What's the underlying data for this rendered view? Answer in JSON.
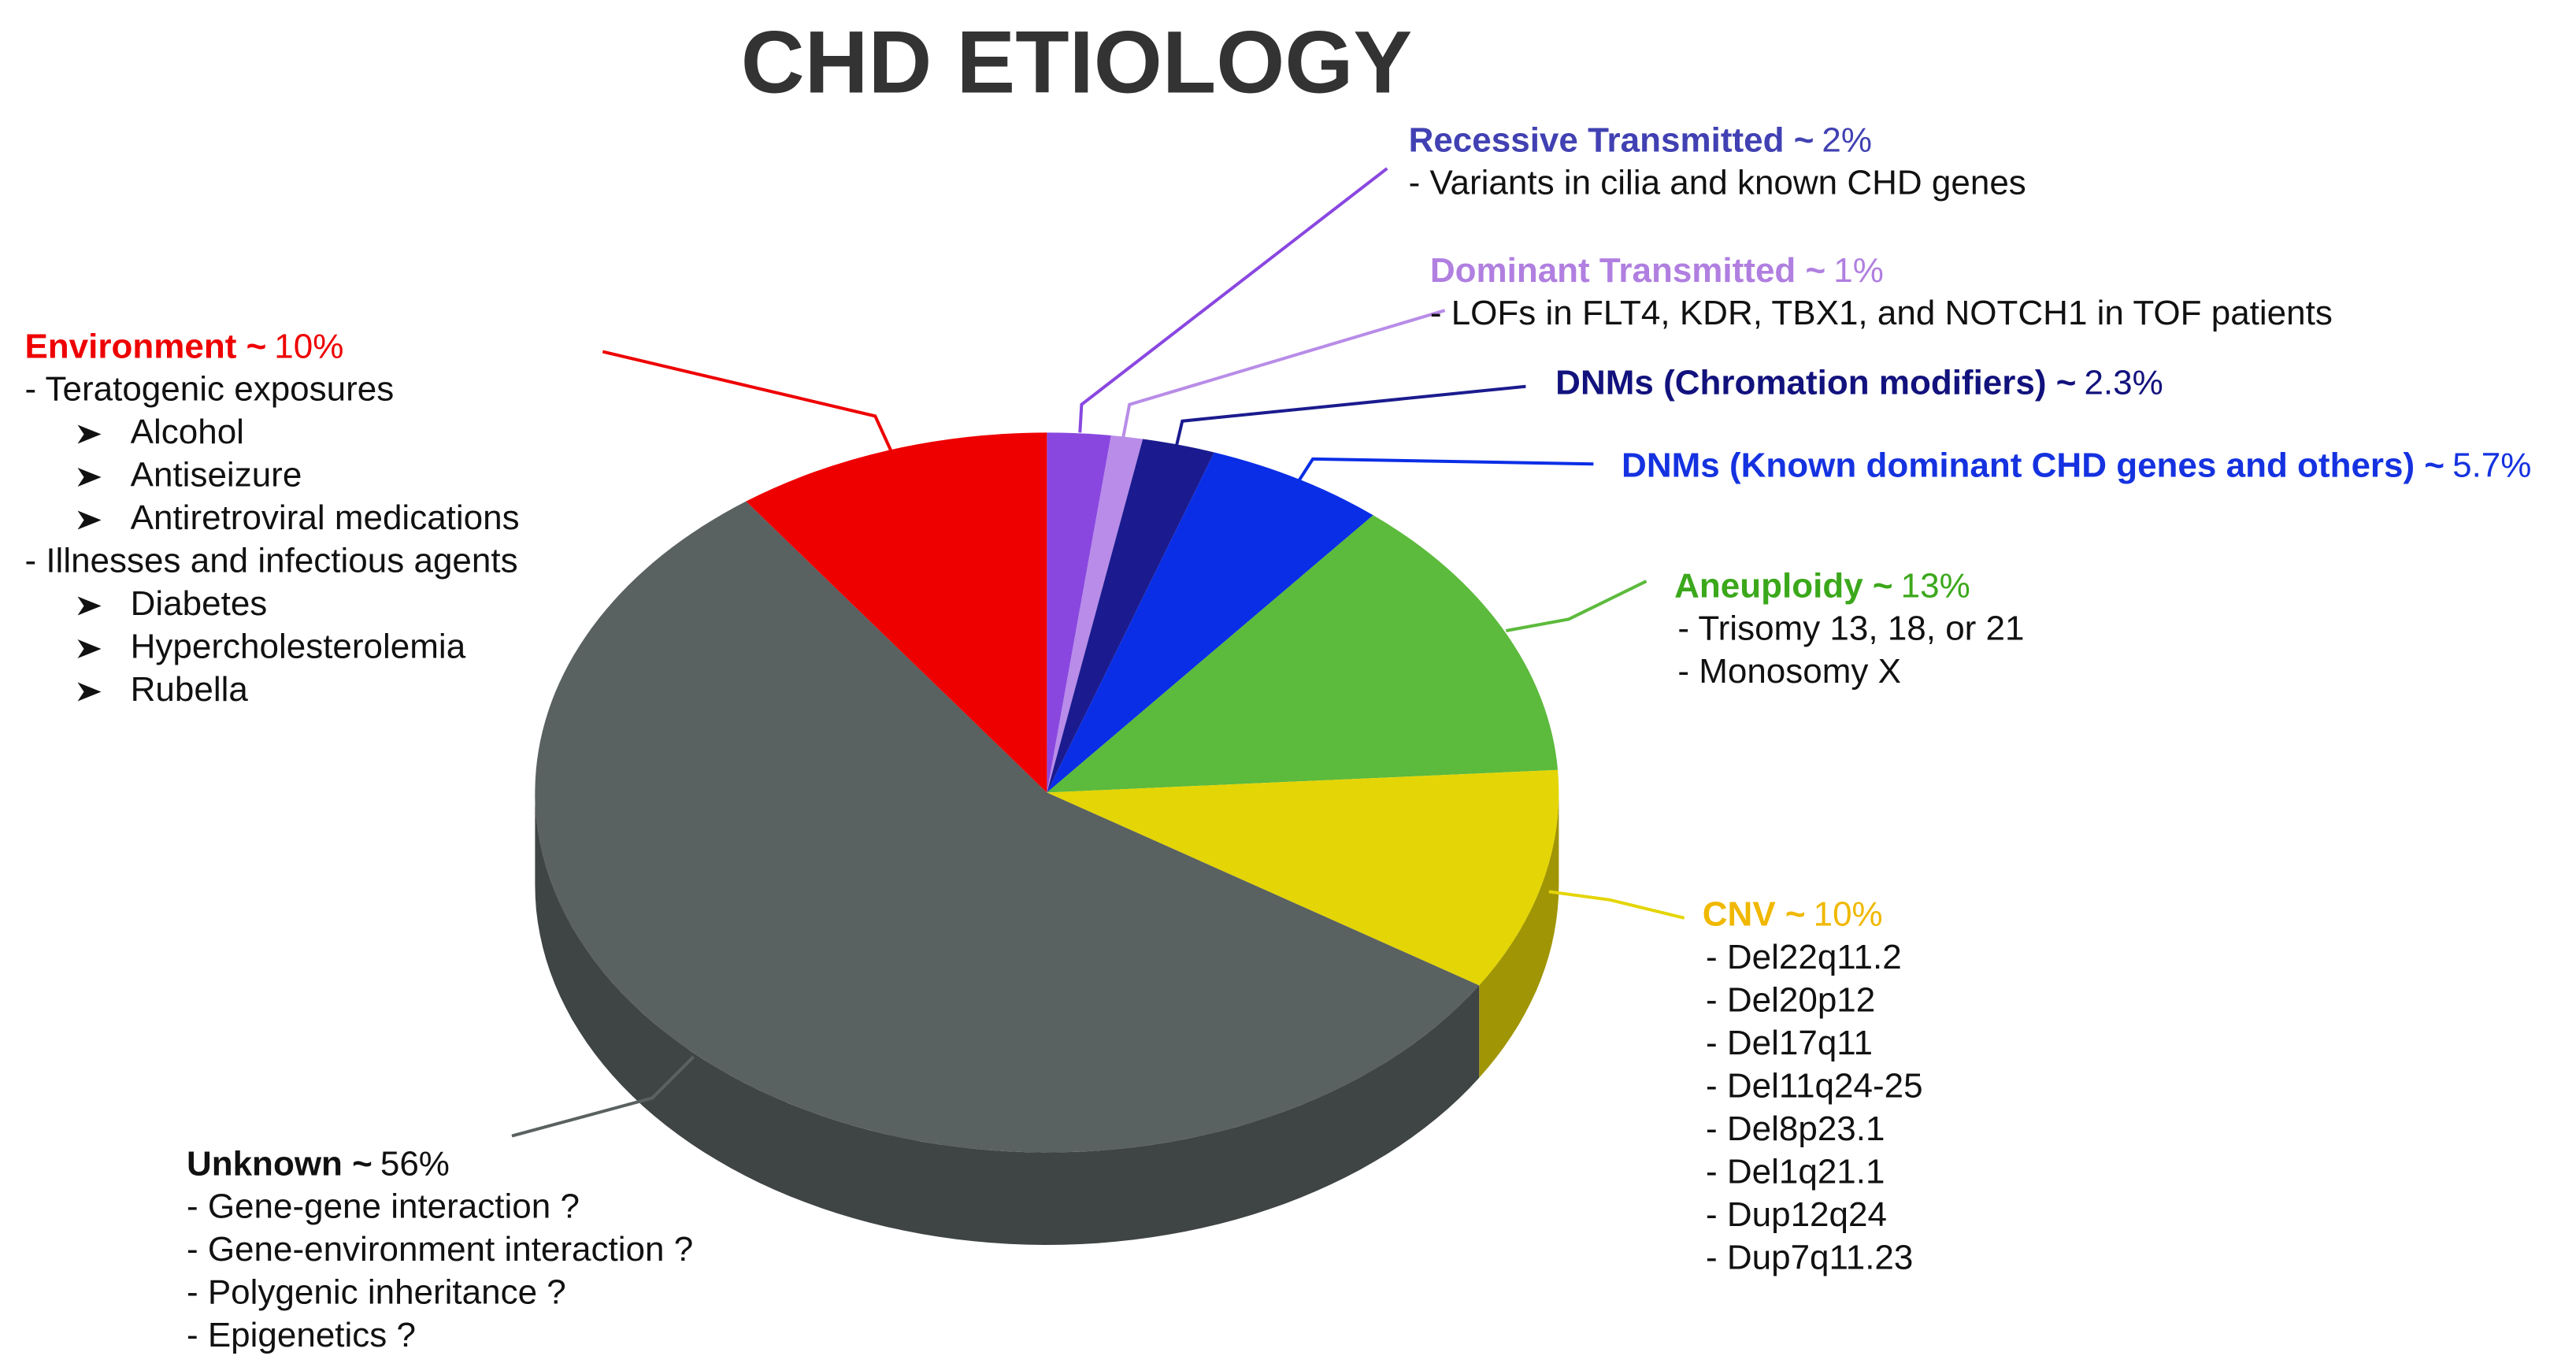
{
  "chart_data": {
    "type": "pie",
    "title": "CHD ETIOLOGY",
    "slices": [
      {
        "name": "Recessive Transmitted ~",
        "value": 2,
        "value_label": "2%",
        "color": "#8a47e0",
        "label_color": "#4141b3",
        "details": [
          "- Variants in cilia and known CHD genes"
        ]
      },
      {
        "name": "Dominant Transmitted ~",
        "value": 1,
        "value_label": "1%",
        "color": "#b88ce8",
        "label_color": "#b07fe0",
        "details": [
          "- LOFs in FLT4, KDR, TBX1, and NOTCH1 in TOF patients"
        ]
      },
      {
        "name": "DNMs (Chromation modifiers) ~",
        "value": 2.3,
        "value_label": "2.3%",
        "color": "#1b1b8f",
        "label_color": "#12127d",
        "details": []
      },
      {
        "name": "DNMs (Known dominant CHD genes and others) ~",
        "value": 5.7,
        "value_label": "5.7%",
        "color": "#0a2ee6",
        "label_color": "#1532e0",
        "details": []
      },
      {
        "name": "Aneuploidy ~",
        "value": 13,
        "value_label": "13%",
        "color": "#5cba3c",
        "label_color": "#3ba81b",
        "details": [
          "- Trisomy 13, 18, or 21",
          "- Monosomy X"
        ]
      },
      {
        "name": "CNV ~",
        "value": 10,
        "value_label": "10%",
        "color": "#e4d506",
        "label_color": "#f0b800",
        "details": [
          "- Del22q11.2",
          "- Del20p12",
          "- Del17q11",
          "- Del11q24-25",
          "- Del8p23.1",
          "- Del1q21.1",
          "- Dup12q24",
          "- Dup7q11.23"
        ]
      },
      {
        "name": "Unknown ~",
        "value": 56,
        "value_label": "56%",
        "color": "#5a6161",
        "label_color": "#111111",
        "details": [
          "- Gene-gene interaction ?",
          "- Gene-environment interaction ?",
          "- Polygenic inheritance ?",
          "- Epigenetics ?"
        ]
      },
      {
        "name": "Environment ~",
        "value": 10,
        "value_label": "10%",
        "color": "#ee0000",
        "label_color": "#ee0000",
        "details": [
          {
            "text": "- Teratogenic exposures",
            "items": [
              "Alcohol",
              "Antiseizure",
              "Antiretroviral medications"
            ]
          },
          {
            "text": "- Illnesses and infectious agents",
            "items": [
              "Diabetes",
              "Hypercholesterolemia",
              "Rubella"
            ]
          }
        ]
      }
    ]
  }
}
